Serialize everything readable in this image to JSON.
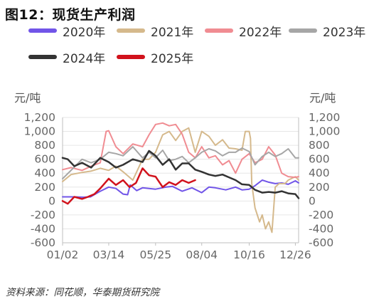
{
  "title": "图12：现货生产利润",
  "source": "资料来源：同花顺，华泰期货研究院",
  "chart_data": {
    "type": "line",
    "yunit_left": "元/吨",
    "yunit_right": "元/吨",
    "ylim": [
      -600,
      1200
    ],
    "yticks": [
      "1,200",
      "1,000",
      "800",
      "600",
      "400",
      "200",
      "0",
      "-200",
      "-400",
      "-600"
    ],
    "xticks": [
      "01/02",
      "03/14",
      "05/25",
      "08/04",
      "10/16",
      "12/26"
    ],
    "x_range": [
      "01/02",
      "12/31"
    ],
    "grid": true,
    "legend_position": "top",
    "series": [
      {
        "name": "2020年",
        "color": "#7155E8",
        "x": [
          "01/02",
          "01/20",
          "02/03",
          "02/14",
          "02/25",
          "03/01",
          "03/14",
          "03/25",
          "04/05",
          "04/12",
          "04/16",
          "04/26",
          "05/05",
          "05/25",
          "06/10",
          "06/20",
          "07/05",
          "07/20",
          "08/04",
          "08/15",
          "08/25",
          "09/10",
          "09/25",
          "10/05",
          "10/16",
          "10/25",
          "11/05",
          "11/15",
          "11/25",
          "12/05",
          "12/15",
          "12/26",
          "12/31"
        ],
        "values": [
          60,
          60,
          55,
          60,
          120,
          140,
          200,
          180,
          100,
          90,
          230,
          150,
          190,
          170,
          200,
          210,
          140,
          190,
          120,
          200,
          190,
          160,
          200,
          160,
          170,
          220,
          300,
          270,
          250,
          260,
          240,
          290,
          260
        ]
      },
      {
        "name": "2021年",
        "color": "#D5B98C",
        "x": [
          "01/02",
          "01/15",
          "02/01",
          "02/15",
          "03/01",
          "03/14",
          "03/25",
          "04/05",
          "04/20",
          "05/05",
          "05/15",
          "05/25",
          "06/05",
          "06/15",
          "06/25",
          "07/05",
          "07/15",
          "07/25",
          "08/04",
          "08/15",
          "08/25",
          "09/05",
          "09/15",
          "09/25",
          "10/05",
          "10/10",
          "10/16",
          "10/18",
          "10/20",
          "10/25",
          "11/01",
          "11/05",
          "11/10",
          "11/15",
          "11/20",
          "11/25",
          "12/01",
          "12/10",
          "12/15",
          "12/26",
          "12/31"
        ],
        "values": [
          280,
          380,
          410,
          430,
          470,
          440,
          500,
          420,
          300,
          600,
          600,
          700,
          950,
          1000,
          870,
          1000,
          1050,
          700,
          1000,
          930,
          800,
          880,
          760,
          750,
          730,
          1000,
          1000,
          900,
          250,
          -100,
          -300,
          -200,
          -400,
          -300,
          -450,
          200,
          250,
          250,
          300,
          350,
          300
        ]
      },
      {
        "name": "2022年",
        "color": "#F08C92",
        "x": [
          "01/02",
          "01/15",
          "02/01",
          "02/15",
          "03/01",
          "03/05",
          "03/10",
          "03/14",
          "03/25",
          "04/05",
          "04/20",
          "05/05",
          "05/15",
          "05/25",
          "06/05",
          "06/15",
          "06/25",
          "07/05",
          "07/15",
          "07/25",
          "08/04",
          "08/15",
          "08/25",
          "09/05",
          "09/15",
          "09/25",
          "10/05",
          "10/16",
          "10/25",
          "11/05",
          "11/15",
          "11/25",
          "12/05",
          "12/15",
          "12/26",
          "12/31"
        ],
        "values": [
          450,
          480,
          440,
          500,
          550,
          750,
          1000,
          1010,
          780,
          680,
          820,
          780,
          950,
          1100,
          1120,
          1080,
          1100,
          960,
          700,
          620,
          780,
          620,
          650,
          520,
          580,
          400,
          600,
          680,
          550,
          600,
          780,
          660,
          400,
          350,
          340,
          350
        ]
      },
      {
        "name": "2023年",
        "color": "#A6A6A6",
        "x": [
          "01/02",
          "01/15",
          "02/01",
          "02/15",
          "03/01",
          "03/14",
          "03/25",
          "04/05",
          "04/20",
          "05/05",
          "05/15",
          "05/25",
          "06/05",
          "06/15",
          "06/25",
          "07/05",
          "07/15",
          "07/25",
          "08/04",
          "08/15",
          "08/25",
          "09/05",
          "09/15",
          "09/25",
          "10/05",
          "10/16",
          "10/25",
          "11/05",
          "11/15",
          "11/25",
          "12/05",
          "12/15",
          "12/26",
          "12/31"
        ],
        "values": [
          320,
          440,
          600,
          550,
          600,
          700,
          680,
          650,
          780,
          620,
          700,
          620,
          730,
          580,
          600,
          640,
          550,
          620,
          700,
          750,
          720,
          650,
          700,
          700,
          760,
          710,
          520,
          640,
          700,
          640,
          680,
          750,
          620,
          620
        ]
      },
      {
        "name": "2024年",
        "color": "#333333",
        "x": [
          "01/02",
          "01/10",
          "01/20",
          "02/01",
          "02/15",
          "03/01",
          "03/14",
          "03/25",
          "04/05",
          "04/20",
          "05/05",
          "05/15",
          "05/25",
          "06/05",
          "06/15",
          "06/25",
          "07/05",
          "07/15",
          "07/25",
          "08/04",
          "08/15",
          "08/25",
          "09/05",
          "09/15",
          "09/25",
          "10/05",
          "10/16",
          "10/25",
          "11/05",
          "11/15",
          "11/25",
          "12/05",
          "12/15",
          "12/26",
          "12/31"
        ],
        "values": [
          620,
          600,
          500,
          550,
          480,
          620,
          560,
          480,
          520,
          600,
          560,
          720,
          650,
          520,
          600,
          450,
          540,
          540,
          450,
          420,
          380,
          360,
          380,
          340,
          300,
          240,
          230,
          160,
          120,
          130,
          120,
          140,
          110,
          100,
          40
        ]
      },
      {
        "name": "2025年",
        "color": "#D1121C",
        "x": [
          "01/02",
          "01/10",
          "01/20",
          "02/01",
          "02/10",
          "02/20",
          "03/01",
          "03/14",
          "03/25",
          "04/05",
          "04/15",
          "04/25",
          "05/05",
          "05/15",
          "05/25",
          "06/05",
          "06/15",
          "06/25",
          "07/05",
          "07/15",
          "07/25"
        ],
        "values": [
          0,
          -40,
          60,
          30,
          60,
          100,
          180,
          320,
          230,
          300,
          200,
          260,
          470,
          370,
          350,
          200,
          270,
          230,
          300,
          260,
          300
        ]
      }
    ]
  }
}
